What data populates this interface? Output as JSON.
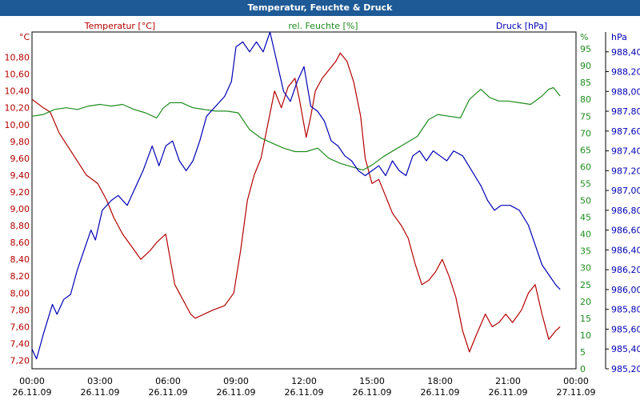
{
  "window": {
    "title": "Temperatur, Feuchte & Druck"
  },
  "colors": {
    "temperature": "#b40000",
    "humidity": "#1e8c1e",
    "pressure": "#0000b4",
    "titlebar": "#1e5a96"
  },
  "chart_data": {
    "type": "line",
    "title": "Temperatur, Feuchte & Druck",
    "grid": true,
    "x_ticks": [
      {
        "time": "00:00",
        "date": "26.11.09"
      },
      {
        "time": "03:00",
        "date": "26.11.09"
      },
      {
        "time": "06:00",
        "date": "26.11.09"
      },
      {
        "time": "09:00",
        "date": "26.11.09"
      },
      {
        "time": "12:00",
        "date": "26.11.09"
      },
      {
        "time": "15:00",
        "date": "26.11.09"
      },
      {
        "time": "18:00",
        "date": "26.11.09"
      },
      {
        "time": "21:00",
        "date": "26.11.09"
      },
      {
        "time": "00:00",
        "date": "27.11.09"
      }
    ],
    "x_range_hours": [
      0,
      24
    ],
    "axes": {
      "temperature": {
        "label": "Temperatur [°C]",
        "unit": "°C",
        "range": [
          7.1,
          11.1
        ],
        "ticks": [
          "7,20",
          "7,40",
          "7,60",
          "7,80",
          "8,00",
          "8,20",
          "8,40",
          "8,60",
          "8,80",
          "9,00",
          "9,20",
          "9,40",
          "9,60",
          "9,80",
          "10,00",
          "10,20",
          "10,40",
          "10,60",
          "10,80"
        ]
      },
      "humidity": {
        "label": "rel. Feuchte [%]",
        "unit": "%",
        "range": [
          0,
          100
        ],
        "ticks": [
          "0",
          "5",
          "10",
          "15",
          "20",
          "25",
          "30",
          "35",
          "40",
          "45",
          "50",
          "55",
          "60",
          "65",
          "70",
          "75",
          "80",
          "85",
          "90",
          "95"
        ]
      },
      "pressure": {
        "label": "Druck [hPa]",
        "unit": "hPa",
        "range": [
          985.2,
          988.6
        ],
        "ticks": [
          "985,20",
          "985,40",
          "985,60",
          "985,80",
          "986,00",
          "986,20",
          "986,40",
          "986,60",
          "986,80",
          "987,00",
          "987,20",
          "987,40",
          "987,60",
          "987,80",
          "988,00",
          "988,20",
          "988,40"
        ]
      }
    },
    "series": [
      {
        "name": "Temperatur",
        "axis": "temperature",
        "points": [
          [
            0,
            10.3
          ],
          [
            0.5,
            10.2
          ],
          [
            0.8,
            10.15
          ],
          [
            1.2,
            9.9
          ],
          [
            1.8,
            9.65
          ],
          [
            2.4,
            9.4
          ],
          [
            2.9,
            9.3
          ],
          [
            3.3,
            9.1
          ],
          [
            3.6,
            8.9
          ],
          [
            4.0,
            8.7
          ],
          [
            4.4,
            8.55
          ],
          [
            4.8,
            8.4
          ],
          [
            5.2,
            8.5
          ],
          [
            5.5,
            8.6
          ],
          [
            5.9,
            8.7
          ],
          [
            6.1,
            8.4
          ],
          [
            6.3,
            8.1
          ],
          [
            6.7,
            7.9
          ],
          [
            7.0,
            7.75
          ],
          [
            7.2,
            7.7
          ],
          [
            7.6,
            7.75
          ],
          [
            8.0,
            7.8
          ],
          [
            8.5,
            7.85
          ],
          [
            8.9,
            8.0
          ],
          [
            9.2,
            8.5
          ],
          [
            9.5,
            9.1
          ],
          [
            9.8,
            9.4
          ],
          [
            10.1,
            9.6
          ],
          [
            10.4,
            10.0
          ],
          [
            10.7,
            10.4
          ],
          [
            11.0,
            10.2
          ],
          [
            11.3,
            10.45
          ],
          [
            11.6,
            10.55
          ],
          [
            11.8,
            10.3
          ],
          [
            12.1,
            9.85
          ],
          [
            12.3,
            10.1
          ],
          [
            12.5,
            10.4
          ],
          [
            12.8,
            10.55
          ],
          [
            13.1,
            10.65
          ],
          [
            13.4,
            10.75
          ],
          [
            13.6,
            10.85
          ],
          [
            13.9,
            10.75
          ],
          [
            14.2,
            10.5
          ],
          [
            14.5,
            10.1
          ],
          [
            14.7,
            9.6
          ],
          [
            15.0,
            9.3
          ],
          [
            15.3,
            9.35
          ],
          [
            15.6,
            9.15
          ],
          [
            15.9,
            8.95
          ],
          [
            16.3,
            8.8
          ],
          [
            16.6,
            8.65
          ],
          [
            16.9,
            8.35
          ],
          [
            17.2,
            8.1
          ],
          [
            17.5,
            8.15
          ],
          [
            17.8,
            8.25
          ],
          [
            18.1,
            8.4
          ],
          [
            18.4,
            8.2
          ],
          [
            18.7,
            7.95
          ],
          [
            19.0,
            7.55
          ],
          [
            19.3,
            7.3
          ],
          [
            19.6,
            7.5
          ],
          [
            20.0,
            7.75
          ],
          [
            20.3,
            7.6
          ],
          [
            20.6,
            7.65
          ],
          [
            20.9,
            7.75
          ],
          [
            21.2,
            7.65
          ],
          [
            21.6,
            7.8
          ],
          [
            21.9,
            8.0
          ],
          [
            22.2,
            8.1
          ],
          [
            22.5,
            7.75
          ],
          [
            22.8,
            7.45
          ],
          [
            23.1,
            7.55
          ],
          [
            23.3,
            7.6
          ]
        ]
      },
      {
        "name": "rel. Feuchte",
        "axis": "humidity",
        "points": [
          [
            0,
            75
          ],
          [
            0.5,
            75.5
          ],
          [
            1.0,
            77
          ],
          [
            1.5,
            77.5
          ],
          [
            2.0,
            77
          ],
          [
            2.5,
            78
          ],
          [
            3.0,
            78.5
          ],
          [
            3.5,
            78
          ],
          [
            4.0,
            78.5
          ],
          [
            4.5,
            77
          ],
          [
            5.0,
            76
          ],
          [
            5.5,
            74.5
          ],
          [
            5.8,
            77.5
          ],
          [
            6.1,
            79
          ],
          [
            6.6,
            79
          ],
          [
            7.1,
            77.5
          ],
          [
            7.6,
            77
          ],
          [
            8.1,
            76.5
          ],
          [
            8.6,
            76.5
          ],
          [
            9.1,
            76
          ],
          [
            9.6,
            71
          ],
          [
            10.1,
            68.5
          ],
          [
            10.6,
            67
          ],
          [
            11.1,
            65.5
          ],
          [
            11.6,
            64.5
          ],
          [
            12.1,
            64.5
          ],
          [
            12.6,
            65.5
          ],
          [
            13.1,
            62.5
          ],
          [
            13.6,
            61
          ],
          [
            14.1,
            60
          ],
          [
            14.6,
            59
          ],
          [
            15.0,
            60.5
          ],
          [
            15.5,
            63
          ],
          [
            16.0,
            65
          ],
          [
            16.5,
            67
          ],
          [
            17.0,
            69
          ],
          [
            17.5,
            74
          ],
          [
            17.9,
            75.5
          ],
          [
            18.4,
            75
          ],
          [
            18.9,
            74.5
          ],
          [
            19.3,
            80
          ],
          [
            19.8,
            83
          ],
          [
            20.2,
            80.5
          ],
          [
            20.6,
            79.5
          ],
          [
            21.0,
            79.5
          ],
          [
            21.5,
            79
          ],
          [
            22.0,
            78.5
          ],
          [
            22.5,
            81
          ],
          [
            22.8,
            83
          ],
          [
            23.0,
            83.5
          ],
          [
            23.3,
            81
          ]
        ]
      },
      {
        "name": "Druck",
        "axis": "pressure",
        "points": [
          [
            0,
            985.4
          ],
          [
            0.2,
            985.3
          ],
          [
            0.5,
            985.55
          ],
          [
            0.9,
            985.85
          ],
          [
            1.1,
            985.75
          ],
          [
            1.4,
            985.9
          ],
          [
            1.7,
            985.95
          ],
          [
            2.0,
            986.2
          ],
          [
            2.3,
            986.4
          ],
          [
            2.6,
            986.6
          ],
          [
            2.8,
            986.5
          ],
          [
            3.1,
            986.8
          ],
          [
            3.5,
            986.9
          ],
          [
            3.8,
            986.95
          ],
          [
            4.2,
            986.85
          ],
          [
            4.5,
            987.0
          ],
          [
            4.9,
            987.2
          ],
          [
            5.3,
            987.45
          ],
          [
            5.6,
            987.25
          ],
          [
            5.9,
            987.45
          ],
          [
            6.2,
            987.5
          ],
          [
            6.5,
            987.3
          ],
          [
            6.8,
            987.2
          ],
          [
            7.1,
            987.3
          ],
          [
            7.4,
            987.5
          ],
          [
            7.7,
            987.75
          ],
          [
            8.1,
            987.85
          ],
          [
            8.5,
            987.95
          ],
          [
            8.8,
            988.1
          ],
          [
            9.0,
            988.45
          ],
          [
            9.3,
            988.5
          ],
          [
            9.6,
            988.4
          ],
          [
            9.9,
            988.5
          ],
          [
            10.2,
            988.4
          ],
          [
            10.5,
            988.6
          ],
          [
            10.8,
            988.3
          ],
          [
            11.1,
            988.0
          ],
          [
            11.4,
            987.9
          ],
          [
            11.7,
            988.1
          ],
          [
            12.0,
            988.25
          ],
          [
            12.3,
            987.85
          ],
          [
            12.6,
            987.8
          ],
          [
            12.9,
            987.7
          ],
          [
            13.2,
            987.5
          ],
          [
            13.5,
            987.45
          ],
          [
            13.8,
            987.35
          ],
          [
            14.1,
            987.3
          ],
          [
            14.4,
            987.2
          ],
          [
            14.7,
            987.15
          ],
          [
            15.0,
            987.2
          ],
          [
            15.3,
            987.25
          ],
          [
            15.6,
            987.15
          ],
          [
            15.9,
            987.3
          ],
          [
            16.2,
            987.2
          ],
          [
            16.5,
            987.15
          ],
          [
            16.8,
            987.35
          ],
          [
            17.1,
            987.4
          ],
          [
            17.4,
            987.3
          ],
          [
            17.7,
            987.4
          ],
          [
            18.0,
            987.35
          ],
          [
            18.3,
            987.3
          ],
          [
            18.6,
            987.4
          ],
          [
            19.0,
            987.35
          ],
          [
            19.4,
            987.2
          ],
          [
            19.8,
            987.05
          ],
          [
            20.1,
            986.9
          ],
          [
            20.4,
            986.8
          ],
          [
            20.7,
            986.85
          ],
          [
            21.1,
            986.85
          ],
          [
            21.5,
            986.8
          ],
          [
            21.9,
            986.65
          ],
          [
            22.2,
            986.45
          ],
          [
            22.5,
            986.25
          ],
          [
            22.8,
            986.15
          ],
          [
            23.1,
            986.05
          ],
          [
            23.3,
            986.0
          ]
        ]
      }
    ]
  }
}
